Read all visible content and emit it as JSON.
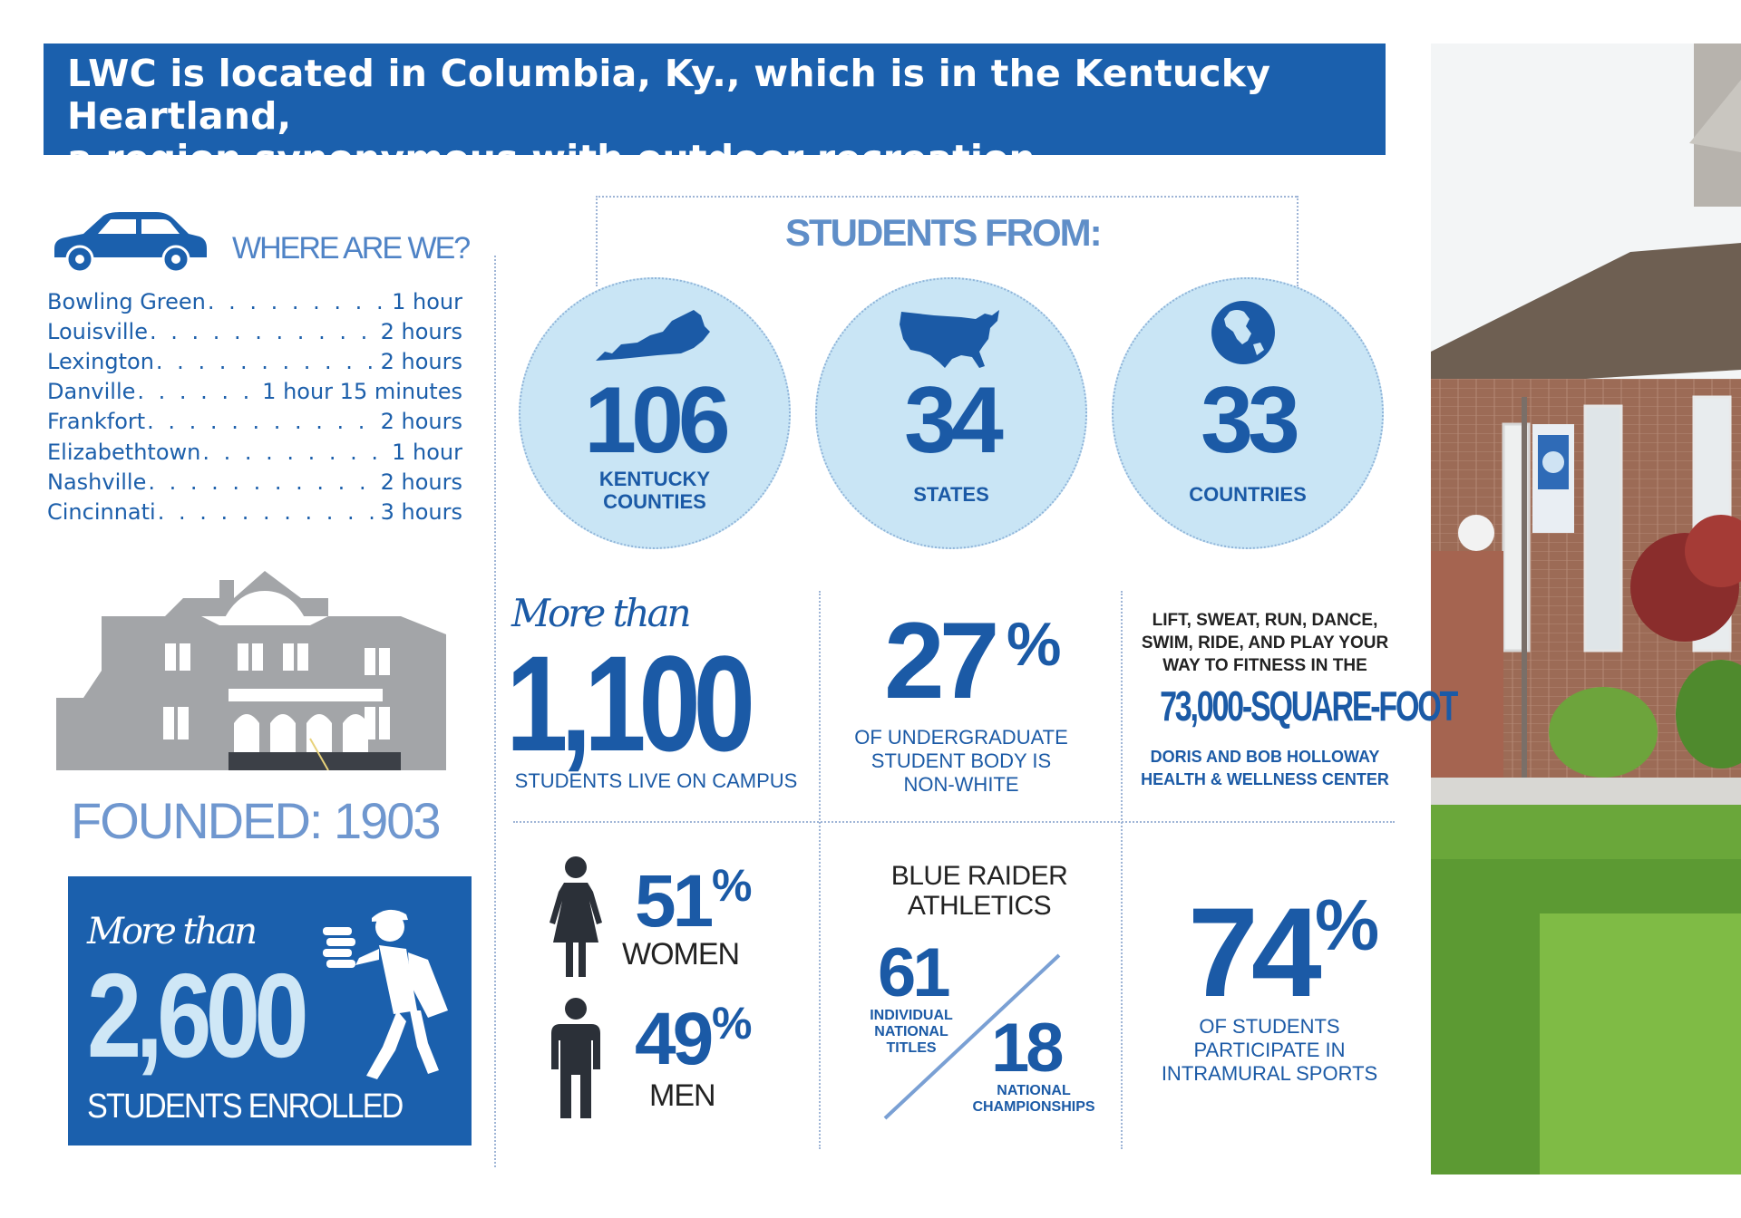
{
  "header": {
    "line1": "LWC is located in Columbia, Ky., which is in the Kentucky Heartland,",
    "line2": "a region synonymous with outdoor recreation."
  },
  "where": {
    "title": "WHERE ARE WE?",
    "icon": "car-icon",
    "places": [
      {
        "city": "Bowling Green",
        "time": "1 hour"
      },
      {
        "city": "Louisville",
        "time": "2 hours"
      },
      {
        "city": "Lexington",
        "time": "2 hours"
      },
      {
        "city": "Danville",
        "time": "1 hour 15 minutes"
      },
      {
        "city": "Frankfort",
        "time": "2 hours"
      },
      {
        "city": "Elizabethtown",
        "time": "1 hour"
      },
      {
        "city": "Nashville",
        "time": "2 hours"
      },
      {
        "city": "Cincinnati",
        "time": "3 hours"
      }
    ]
  },
  "founded": "FOUNDED: 1903",
  "enrollment": {
    "more_than": "More than",
    "number": "2,600",
    "label": "STUDENTS ENROLLED"
  },
  "students_from": {
    "title": "STUDENTS FROM:",
    "items": [
      {
        "icon": "kentucky-map-icon",
        "number": "106",
        "label1": "KENTUCKY",
        "label2": "COUNTIES"
      },
      {
        "icon": "usa-map-icon",
        "number": "34",
        "label1": "STATES",
        "label2": ""
      },
      {
        "icon": "globe-icon",
        "number": "33",
        "label1": "COUNTRIES",
        "label2": ""
      }
    ]
  },
  "housing": {
    "more_than": "More than",
    "number": "1,100",
    "label": "STUDENTS LIVE ON CAMPUS"
  },
  "diversity": {
    "number": "27",
    "symbol": "%",
    "line1": "OF UNDERGRADUATE",
    "line2": "STUDENT BODY IS",
    "line3": "NON-WHITE"
  },
  "fitness": {
    "line1": "LIFT, SWEAT, RUN, DANCE,",
    "line2": "SWIM, RIDE, AND PLAY YOUR",
    "line3": "WAY TO FITNESS IN THE",
    "highlight": "73,000-SQUARE-FOOT",
    "center1": "DORIS AND BOB HOLLOWAY",
    "center2": "HEALTH & WELLNESS CENTER"
  },
  "gender": {
    "women_pct": "51",
    "women_label": "WOMEN",
    "men_pct": "49",
    "men_label": "MEN",
    "symbol": "%"
  },
  "athletics": {
    "title1": "BLUE RAIDER",
    "title2": "ATHLETICS",
    "individual_number": "61",
    "individual_line1": "INDIVIDUAL",
    "individual_line2": "NATIONAL",
    "individual_line3": "TITLES",
    "championships_number": "18",
    "championships_line1": "NATIONAL",
    "championships_line2": "CHAMPIONSHIPS"
  },
  "intramural": {
    "number": "74",
    "symbol": "%",
    "line1": "OF STUDENTS",
    "line2": "PARTICIPATE IN",
    "line3": "INTRAMURAL SPORTS"
  },
  "colors": {
    "banner": "#1b60ad",
    "accent": "#1b5aa6",
    "circle_fill": "#c9e5f5",
    "light_blue_text": "#6f97cf"
  }
}
